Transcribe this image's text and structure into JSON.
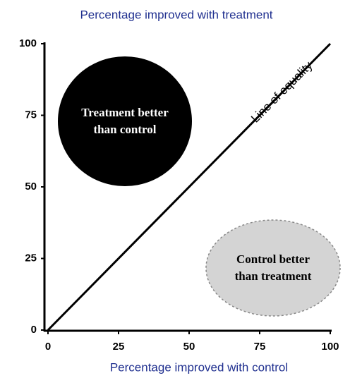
{
  "chart_data": {
    "type": "line",
    "title": "Percentage improved with treatment",
    "x_label": "Percentage improved with control",
    "x": [
      0,
      100
    ],
    "series": [
      {
        "name": "Line of equality",
        "color": "#000000",
        "values": [
          0,
          100
        ]
      }
    ],
    "xlim": [
      0,
      100
    ],
    "ylim": [
      0,
      100
    ],
    "xticks": [
      0,
      25,
      50,
      75,
      100
    ],
    "yticks": [
      0,
      25,
      50,
      75,
      100
    ],
    "regions": [
      {
        "lines": [
          "Treatment better",
          "than control"
        ],
        "color": "#000000"
      },
      {
        "lines": [
          "Control better",
          "than treatment"
        ],
        "color": "#d4d4d4"
      }
    ]
  }
}
